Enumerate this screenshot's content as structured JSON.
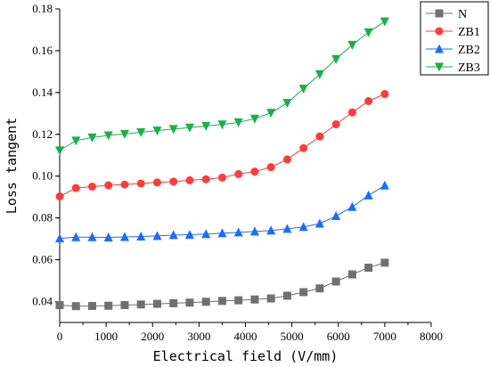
{
  "chart_data": {
    "type": "line",
    "title": "",
    "xlabel": "Electrical field (V/mm)",
    "ylabel": "Loss tangent",
    "xlim": [
      0,
      8000
    ],
    "ylim": [
      0.03,
      0.18
    ],
    "xticks": [
      0,
      1000,
      2000,
      3000,
      4000,
      5000,
      6000,
      7000,
      8000
    ],
    "yticks": [
      0.04,
      0.06,
      0.08,
      0.1,
      0.12,
      0.14,
      0.16,
      0.18
    ],
    "ytick_labels": [
      "0.04",
      "0.06",
      "0.08",
      "0.10",
      "0.12",
      "0.14",
      "0.16",
      "0.18"
    ],
    "grid": false,
    "legend_position": "top-right-outside",
    "x": [
      0,
      350,
      700,
      1050,
      1400,
      1750,
      2100,
      2450,
      2800,
      3150,
      3500,
      3850,
      4200,
      4550,
      4900,
      5250,
      5600,
      5950,
      6300,
      6650,
      7000
    ],
    "series": [
      {
        "name": "N",
        "color": "#707070",
        "marker": "square",
        "values": [
          0.0383,
          0.0378,
          0.0379,
          0.038,
          0.0383,
          0.0386,
          0.0389,
          0.0392,
          0.0395,
          0.0399,
          0.0403,
          0.0406,
          0.041,
          0.0415,
          0.0428,
          0.0445,
          0.0463,
          0.0496,
          0.053,
          0.0562,
          0.0586
        ]
      },
      {
        "name": "ZB1",
        "color": "#ff3b3b",
        "marker": "circle",
        "values": [
          0.0903,
          0.0943,
          0.095,
          0.0956,
          0.096,
          0.0965,
          0.097,
          0.0974,
          0.098,
          0.0985,
          0.0993,
          0.101,
          0.1022,
          0.1043,
          0.108,
          0.1134,
          0.119,
          0.1248,
          0.1305,
          0.1359,
          0.1393
        ]
      },
      {
        "name": "ZB2",
        "color": "#1e6bff",
        "marker": "triangle-up",
        "values": [
          0.0702,
          0.0708,
          0.0708,
          0.0707,
          0.0709,
          0.0711,
          0.0714,
          0.0718,
          0.072,
          0.0723,
          0.0727,
          0.0731,
          0.0735,
          0.074,
          0.0748,
          0.0757,
          0.0773,
          0.0809,
          0.0853,
          0.0908,
          0.0955
        ]
      },
      {
        "name": "ZB3",
        "color": "#18b04a",
        "marker": "triangle-down",
        "values": [
          0.1123,
          0.117,
          0.1185,
          0.1195,
          0.1202,
          0.121,
          0.1218,
          0.1225,
          0.1232,
          0.124,
          0.1247,
          0.1257,
          0.1275,
          0.1303,
          0.135,
          0.1418,
          0.1488,
          0.156,
          0.1628,
          0.1688,
          0.174
        ]
      }
    ]
  }
}
